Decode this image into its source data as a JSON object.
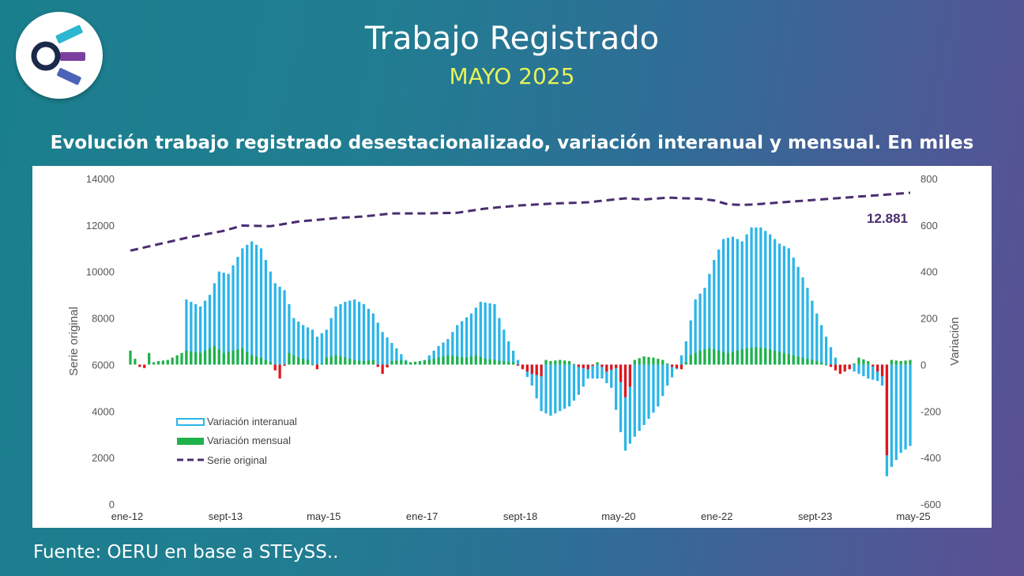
{
  "header": {
    "title": "Trabajo Registrado",
    "subtitle": "MAYO 2025"
  },
  "chart_title": "Evolución trabajo registrado desestacionalizado, variación interanual y mensual. En miles",
  "source": "Fuente: OERU en base a STEySS..",
  "logo": {
    "icon": "oeru-logo",
    "colors": [
      "#2bb8d0",
      "#7b3fa0",
      "#4a63b8",
      "#1b2a4a"
    ]
  },
  "colors": {
    "interanual": "#2bb5e8",
    "mensual_pos": "#1fb24a",
    "mensual_neg": "#e0161c",
    "serie": "#4a2d6f",
    "axis_text": "#555555"
  },
  "chart_data": {
    "type": "bar",
    "title": "Evolución trabajo registrado desestacionalizado, variación interanual y mensual. En miles",
    "ylabel": "Serie original",
    "y2label": "Variación",
    "ylim": [
      0,
      14000
    ],
    "y2lim": [
      -600,
      800
    ],
    "yticks": [
      "0",
      "2000",
      "4000",
      "6000",
      "8000",
      "10000",
      "12000",
      "14000"
    ],
    "y2ticks": [
      "-600",
      "-400",
      "-200",
      "0",
      "200",
      "400",
      "600",
      "800"
    ],
    "xticks": [
      "ene-12",
      "sept-13",
      "may-15",
      "ene-17",
      "sept-18",
      "may-20",
      "ene-22",
      "sept-23",
      "may-25"
    ],
    "x_range": [
      "ene-12",
      "may-25"
    ],
    "last_label": "12.881",
    "legend_position": "bottom-left",
    "legend": [
      "Variación interanual",
      "Variación mensual",
      "Serie original"
    ],
    "series": [
      {
        "name": "Serie original",
        "kind": "line-dashed",
        "axis": "left",
        "anchors": [
          [
            0,
            10900
          ],
          [
            12,
            11450
          ],
          [
            20,
            11750
          ],
          [
            24,
            11980
          ],
          [
            30,
            11950
          ],
          [
            36,
            12150
          ],
          [
            44,
            12300
          ],
          [
            50,
            12370
          ],
          [
            56,
            12500
          ],
          [
            63,
            12500
          ],
          [
            70,
            12530
          ],
          [
            76,
            12710
          ],
          [
            83,
            12840
          ],
          [
            90,
            12920
          ],
          [
            98,
            12980
          ],
          [
            106,
            13150
          ],
          [
            110,
            13100
          ],
          [
            115,
            13180
          ],
          [
            122,
            13130
          ],
          [
            125,
            13060
          ],
          [
            128,
            12890
          ],
          [
            131,
            12869
          ],
          [
            133,
            12881
          ]
        ]
      },
      {
        "name": "Variación interanual",
        "kind": "bar",
        "axis": "right",
        "anchors": [
          [
            0,
            0
          ],
          [
            11,
            0
          ],
          [
            12,
            280
          ],
          [
            15,
            250
          ],
          [
            17,
            300
          ],
          [
            19,
            400
          ],
          [
            21,
            390
          ],
          [
            24,
            500
          ],
          [
            26,
            530
          ],
          [
            28,
            500
          ],
          [
            31,
            350
          ],
          [
            33,
            320
          ],
          [
            35,
            200
          ],
          [
            37,
            170
          ],
          [
            39,
            150
          ],
          [
            40,
            120
          ],
          [
            42,
            150
          ],
          [
            44,
            250
          ],
          [
            46,
            270
          ],
          [
            48,
            280
          ],
          [
            50,
            260
          ],
          [
            52,
            220
          ],
          [
            54,
            140
          ],
          [
            57,
            70
          ],
          [
            59,
            20
          ],
          [
            61,
            0
          ],
          [
            63,
            20
          ],
          [
            66,
            80
          ],
          [
            68,
            110
          ],
          [
            70,
            170
          ],
          [
            73,
            220
          ],
          [
            75,
            270
          ],
          [
            78,
            260
          ],
          [
            79,
            200
          ],
          [
            81,
            100
          ],
          [
            83,
            20
          ],
          [
            86,
            -90
          ],
          [
            88,
            -200
          ],
          [
            90,
            -220
          ],
          [
            92,
            -200
          ],
          [
            94,
            -180
          ],
          [
            96,
            -130
          ],
          [
            98,
            -60
          ],
          [
            101,
            -60
          ],
          [
            103,
            -100
          ],
          [
            105,
            -290
          ],
          [
            106,
            -370
          ],
          [
            108,
            -310
          ],
          [
            110,
            -260
          ],
          [
            113,
            -180
          ],
          [
            115,
            -90
          ],
          [
            117,
            -20
          ],
          [
            119,
            100
          ],
          [
            121,
            280
          ],
          [
            123,
            330
          ],
          [
            125,
            450
          ],
          [
            127,
            540
          ],
          [
            129,
            550
          ],
          [
            131,
            530
          ],
          [
            133,
            590
          ],
          [
            135,
            590
          ],
          [
            137,
            560
          ],
          [
            139,
            520
          ],
          [
            141,
            500
          ],
          [
            143,
            420
          ],
          [
            145,
            330
          ],
          [
            147,
            220
          ],
          [
            149,
            120
          ],
          [
            151,
            30
          ],
          [
            152,
            0
          ],
          [
            154,
            -20
          ],
          [
            156,
            -40
          ],
          [
            158,
            -60
          ],
          [
            160,
            -70
          ],
          [
            161,
            -90
          ],
          [
            162,
            -480
          ],
          [
            163,
            -440
          ],
          [
            165,
            -380
          ],
          [
            167,
            -350
          ]
        ]
      },
      {
        "name": "Variación mensual",
        "kind": "bar",
        "axis": "right",
        "anchors": [
          [
            0,
            60
          ],
          [
            1,
            25
          ],
          [
            2,
            -10
          ],
          [
            3,
            -15
          ],
          [
            4,
            50
          ],
          [
            5,
            10
          ],
          [
            6,
            15
          ],
          [
            8,
            20
          ],
          [
            12,
            60
          ],
          [
            15,
            50
          ],
          [
            18,
            80
          ],
          [
            20,
            50
          ],
          [
            22,
            60
          ],
          [
            24,
            70
          ],
          [
            26,
            40
          ],
          [
            28,
            30
          ],
          [
            30,
            10
          ],
          [
            32,
            -60
          ],
          [
            34,
            50
          ],
          [
            36,
            30
          ],
          [
            38,
            20
          ],
          [
            40,
            -20
          ],
          [
            42,
            30
          ],
          [
            44,
            40
          ],
          [
            46,
            30
          ],
          [
            48,
            20
          ],
          [
            50,
            15
          ],
          [
            52,
            20
          ],
          [
            54,
            -40
          ],
          [
            56,
            15
          ],
          [
            58,
            20
          ],
          [
            60,
            10
          ],
          [
            62,
            15
          ],
          [
            64,
            20
          ],
          [
            66,
            30
          ],
          [
            68,
            40
          ],
          [
            70,
            35
          ],
          [
            72,
            30
          ],
          [
            74,
            40
          ],
          [
            76,
            25
          ],
          [
            78,
            20
          ],
          [
            80,
            15
          ],
          [
            82,
            10
          ],
          [
            84,
            -20
          ],
          [
            86,
            -40
          ],
          [
            88,
            -50
          ],
          [
            89,
            20
          ],
          [
            90,
            15
          ],
          [
            92,
            20
          ],
          [
            94,
            15
          ],
          [
            96,
            -10
          ],
          [
            98,
            -20
          ],
          [
            100,
            10
          ],
          [
            102,
            -30
          ],
          [
            104,
            -15
          ],
          [
            105,
            -75
          ],
          [
            106,
            -140
          ],
          [
            107,
            -95
          ],
          [
            108,
            20
          ],
          [
            110,
            35
          ],
          [
            112,
            30
          ],
          [
            114,
            20
          ],
          [
            116,
            -10
          ],
          [
            118,
            -20
          ],
          [
            120,
            40
          ],
          [
            122,
            60
          ],
          [
            124,
            70
          ],
          [
            126,
            60
          ],
          [
            128,
            50
          ],
          [
            130,
            60
          ],
          [
            132,
            70
          ],
          [
            134,
            75
          ],
          [
            136,
            70
          ],
          [
            138,
            60
          ],
          [
            140,
            50
          ],
          [
            142,
            40
          ],
          [
            144,
            30
          ],
          [
            146,
            20
          ],
          [
            148,
            10
          ],
          [
            150,
            -10
          ],
          [
            152,
            -40
          ],
          [
            154,
            -20
          ],
          [
            156,
            30
          ],
          [
            158,
            15
          ],
          [
            160,
            -30
          ],
          [
            161,
            -50
          ],
          [
            162,
            -390
          ],
          [
            163,
            20
          ],
          [
            165,
            15
          ],
          [
            167,
            20
          ]
        ]
      }
    ]
  }
}
